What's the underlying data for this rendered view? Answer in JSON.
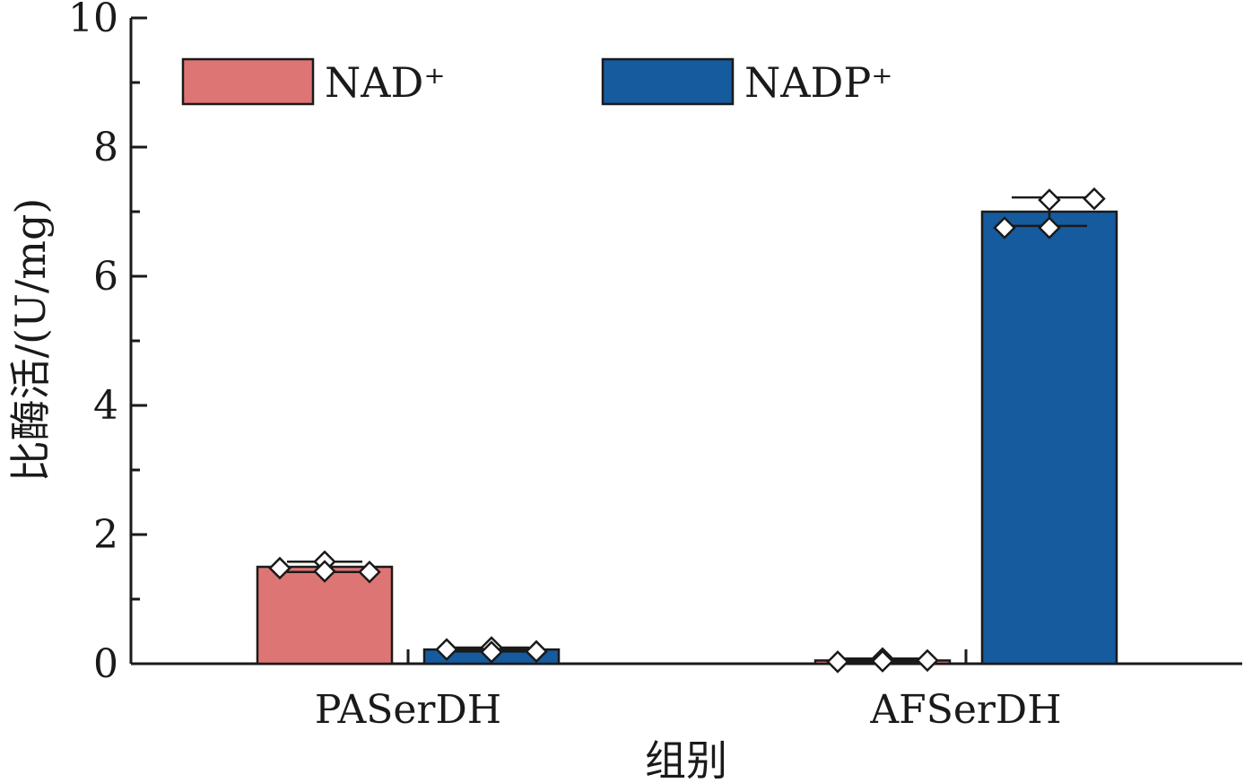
{
  "chart_data": {
    "type": "bar",
    "ylabel": "比酶活/(U/mg)",
    "xlabel": "组别",
    "ylim": [
      0,
      10
    ],
    "yticks": [
      0,
      2,
      4,
      6,
      8,
      10
    ],
    "categories": [
      "PASerDH",
      "AFSerDH"
    ],
    "legend_position": "top-left",
    "series": [
      {
        "name": "NAD⁺",
        "color": "#de7575",
        "values": [
          1.5,
          0.05
        ],
        "errors": [
          0.08,
          0.03
        ],
        "points": [
          [
            1.48,
            1.58,
            1.43,
            1.42
          ],
          [
            0.03,
            0.08,
            0.04,
            0.05
          ]
        ]
      },
      {
        "name": "NADP⁺",
        "color": "#155b9e",
        "values": [
          0.22,
          7.0
        ],
        "errors": [
          0.03,
          0.22
        ],
        "points": [
          [
            0.22,
            0.25,
            0.18,
            0.19
          ],
          [
            6.75,
            7.18,
            6.75,
            7.2
          ]
        ]
      }
    ]
  }
}
